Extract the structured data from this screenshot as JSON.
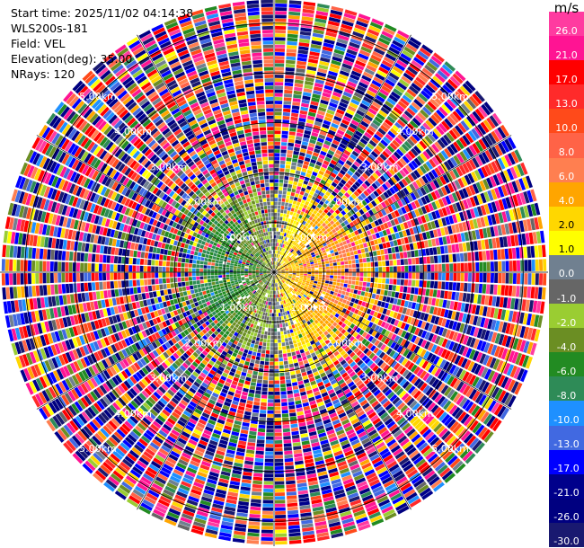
{
  "info": {
    "start_time": "Start time: 2025/11/02 04:14:38",
    "instrument": "WLS200s-181",
    "field": "Field: VEL",
    "elevation": "Elevation(deg): 35.00",
    "nrays": "NRays: 120"
  },
  "colorbar": {
    "unit": "m/s",
    "ticks": [
      "26.0",
      "21.0",
      "17.0",
      "13.0",
      "10.0",
      "8.0",
      "6.0",
      "4.0",
      "2.0",
      "1.0",
      "0.0",
      "-1.0",
      "-2.0",
      "-4.0",
      "-6.0",
      "-8.0",
      "-10.0",
      "-13.0",
      "-17.0",
      "-21.0",
      "-26.0",
      "-30.0"
    ],
    "colors": [
      "#ff3ba0",
      "#ff1493",
      "#ff0000",
      "#ff2a2a",
      "#ff4a1a",
      "#ff6347",
      "#ff7f50",
      "#ffa500",
      "#ffd700",
      "#ffff00",
      "#708090",
      "#666666",
      "#9acd32",
      "#6b8e23",
      "#228b22",
      "#2e8b57",
      "#1e90ff",
      "#4169e1",
      "#0000ff",
      "#00008b",
      "#000080",
      "#191970"
    ]
  },
  "chart_data": {
    "type": "ppi",
    "field": "VEL",
    "unit": "m/s",
    "nrays": 120,
    "range_rings_km": [
      "1.00km",
      "2.00km",
      "3.00km",
      "4.00km",
      "5.00km"
    ],
    "max_range_km": 5.5,
    "color_levels": [
      -30.0,
      -26.0,
      -21.0,
      -17.0,
      -13.0,
      -10.0,
      -8.0,
      -6.0,
      -4.0,
      -2.0,
      -1.0,
      0.0,
      1.0,
      2.0,
      4.0,
      6.0,
      8.0,
      10.0,
      13.0,
      17.0,
      21.0,
      26.0
    ],
    "near_field_pattern": "yellow/orange positive velocities east of center within ~1.5 km; green/blue negative velocities west of center"
  }
}
